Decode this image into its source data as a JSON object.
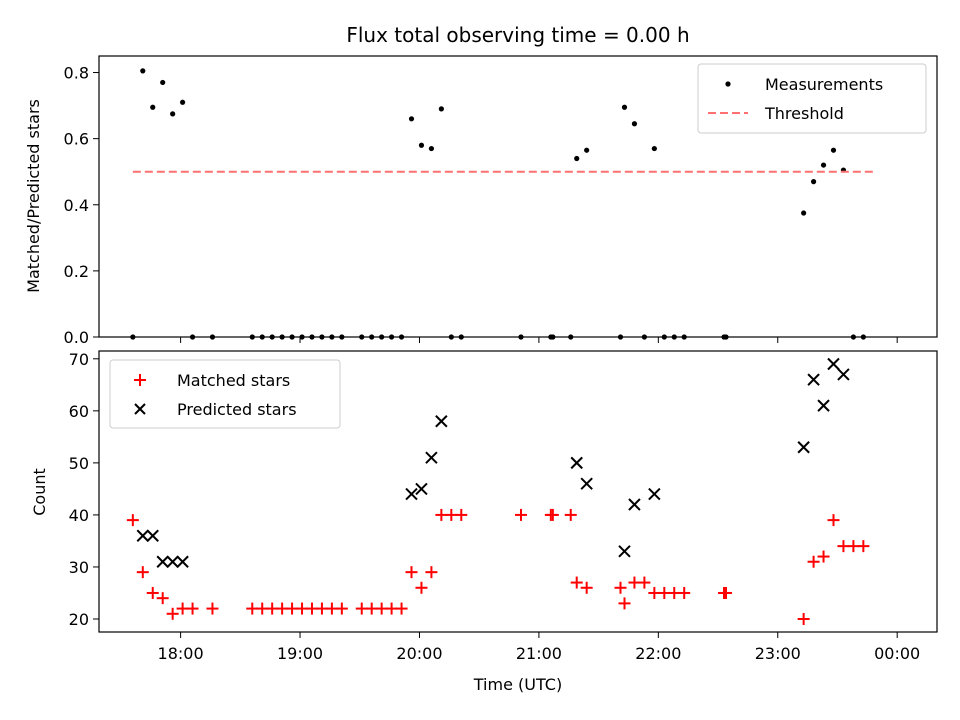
{
  "chart_data": [
    {
      "type": "scatter",
      "title": "Flux total observing time = 0.00 h",
      "xlabel": "",
      "ylabel": "Matched/Predicted stars",
      "xlim": [
        "17:19",
        "00:20"
      ],
      "ylim": [
        0,
        0.85
      ],
      "yticks": [
        "0.0",
        "0.2",
        "0.4",
        "0.6",
        "0.8"
      ],
      "legend_position": "top-right",
      "series": [
        {
          "name": "Measurements",
          "marker": "dot",
          "color": "#000000",
          "points": [
            [
              "17:36",
              0.0
            ],
            [
              "17:41",
              0.805
            ],
            [
              "17:46",
              0.695
            ],
            [
              "17:51",
              0.77
            ],
            [
              "17:56",
              0.675
            ],
            [
              "18:01",
              0.71
            ],
            [
              "18:06",
              0.0
            ],
            [
              "18:16",
              0.0
            ],
            [
              "18:36",
              0.0
            ],
            [
              "18:41",
              0.0
            ],
            [
              "18:46",
              0.0
            ],
            [
              "18:51",
              0.0
            ],
            [
              "18:56",
              0.0
            ],
            [
              "19:01",
              0.0
            ],
            [
              "19:06",
              0.0
            ],
            [
              "19:11",
              0.0
            ],
            [
              "19:16",
              0.0
            ],
            [
              "19:21",
              0.0
            ],
            [
              "19:31",
              0.0
            ],
            [
              "19:36",
              0.0
            ],
            [
              "19:41",
              0.0
            ],
            [
              "19:46",
              0.0
            ],
            [
              "19:51",
              0.0
            ],
            [
              "19:56",
              0.66
            ],
            [
              "20:01",
              0.58
            ],
            [
              "20:06",
              0.57
            ],
            [
              "20:11",
              0.69
            ],
            [
              "20:16",
              0.0
            ],
            [
              "20:21",
              0.0
            ],
            [
              "20:51",
              0.0
            ],
            [
              "21:06",
              0.0
            ],
            [
              "21:07",
              0.0
            ],
            [
              "21:16",
              0.0
            ],
            [
              "21:19",
              0.54
            ],
            [
              "21:24",
              0.565
            ],
            [
              "21:41",
              0.0
            ],
            [
              "21:43",
              0.695
            ],
            [
              "21:48",
              0.645
            ],
            [
              "21:53",
              0.0
            ],
            [
              "21:58",
              0.57
            ],
            [
              "22:03",
              0.0
            ],
            [
              "22:08",
              0.0
            ],
            [
              "22:13",
              0.0
            ],
            [
              "22:33",
              0.0
            ],
            [
              "22:34",
              0.0
            ],
            [
              "23:13",
              0.375
            ],
            [
              "23:18",
              0.47
            ],
            [
              "23:23",
              0.52
            ],
            [
              "23:28",
              0.565
            ],
            [
              "23:33",
              0.505
            ],
            [
              "23:38",
              0.0
            ],
            [
              "23:43",
              0.0
            ]
          ]
        },
        {
          "name": "Threshold",
          "marker": "dashed-line",
          "color": "#ff7070",
          "points": [
            [
              "17:36",
              0.5
            ],
            [
              "23:48",
              0.5
            ]
          ]
        }
      ]
    },
    {
      "type": "scatter",
      "title": "",
      "xlabel": "Time (UTC)",
      "ylabel": "Count",
      "xlim": [
        "17:19",
        "00:20"
      ],
      "ylim": [
        17.5,
        71.5
      ],
      "yticks": [
        "20",
        "30",
        "40",
        "50",
        "60",
        "70"
      ],
      "xticks": [
        "18:00",
        "19:00",
        "20:00",
        "21:00",
        "22:00",
        "23:00",
        "00:00"
      ],
      "legend_position": "top-left",
      "series": [
        {
          "name": "Matched stars",
          "marker": "plus",
          "color": "#ff0000",
          "points": [
            [
              "17:36",
              39
            ],
            [
              "17:41",
              29
            ],
            [
              "17:46",
              25
            ],
            [
              "17:51",
              24
            ],
            [
              "17:56",
              21
            ],
            [
              "18:01",
              22
            ],
            [
              "18:06",
              22
            ],
            [
              "18:16",
              22
            ],
            [
              "18:36",
              22
            ],
            [
              "18:41",
              22
            ],
            [
              "18:46",
              22
            ],
            [
              "18:51",
              22
            ],
            [
              "18:56",
              22
            ],
            [
              "19:01",
              22
            ],
            [
              "19:06",
              22
            ],
            [
              "19:11",
              22
            ],
            [
              "19:16",
              22
            ],
            [
              "19:21",
              22
            ],
            [
              "19:31",
              22
            ],
            [
              "19:36",
              22
            ],
            [
              "19:41",
              22
            ],
            [
              "19:46",
              22
            ],
            [
              "19:51",
              22
            ],
            [
              "19:56",
              29
            ],
            [
              "20:01",
              26
            ],
            [
              "20:06",
              29
            ],
            [
              "20:11",
              40
            ],
            [
              "20:16",
              40
            ],
            [
              "20:21",
              40
            ],
            [
              "20:51",
              40
            ],
            [
              "21:06",
              40
            ],
            [
              "21:07",
              40
            ],
            [
              "21:16",
              40
            ],
            [
              "21:19",
              27
            ],
            [
              "21:24",
              26
            ],
            [
              "21:41",
              26
            ],
            [
              "21:43",
              23
            ],
            [
              "21:48",
              27
            ],
            [
              "21:53",
              27
            ],
            [
              "21:58",
              25
            ],
            [
              "22:03",
              25
            ],
            [
              "22:08",
              25
            ],
            [
              "22:13",
              25
            ],
            [
              "22:33",
              25
            ],
            [
              "22:34",
              25
            ],
            [
              "23:13",
              20
            ],
            [
              "23:18",
              31
            ],
            [
              "23:23",
              32
            ],
            [
              "23:28",
              39
            ],
            [
              "23:33",
              34
            ],
            [
              "23:38",
              34
            ],
            [
              "23:43",
              34
            ]
          ]
        },
        {
          "name": "Predicted stars",
          "marker": "x",
          "color": "#000000",
          "points": [
            [
              "17:41",
              36
            ],
            [
              "17:46",
              36
            ],
            [
              "17:51",
              31
            ],
            [
              "17:56",
              31
            ],
            [
              "18:01",
              31
            ],
            [
              "19:56",
              44
            ],
            [
              "20:01",
              45
            ],
            [
              "20:06",
              51
            ],
            [
              "20:11",
              58
            ],
            [
              "21:19",
              50
            ],
            [
              "21:24",
              46
            ],
            [
              "21:43",
              33
            ],
            [
              "21:48",
              42
            ],
            [
              "21:58",
              44
            ],
            [
              "23:13",
              53
            ],
            [
              "23:18",
              66
            ],
            [
              "23:23",
              61
            ],
            [
              "23:28",
              69
            ],
            [
              "23:33",
              67
            ]
          ]
        }
      ]
    }
  ]
}
